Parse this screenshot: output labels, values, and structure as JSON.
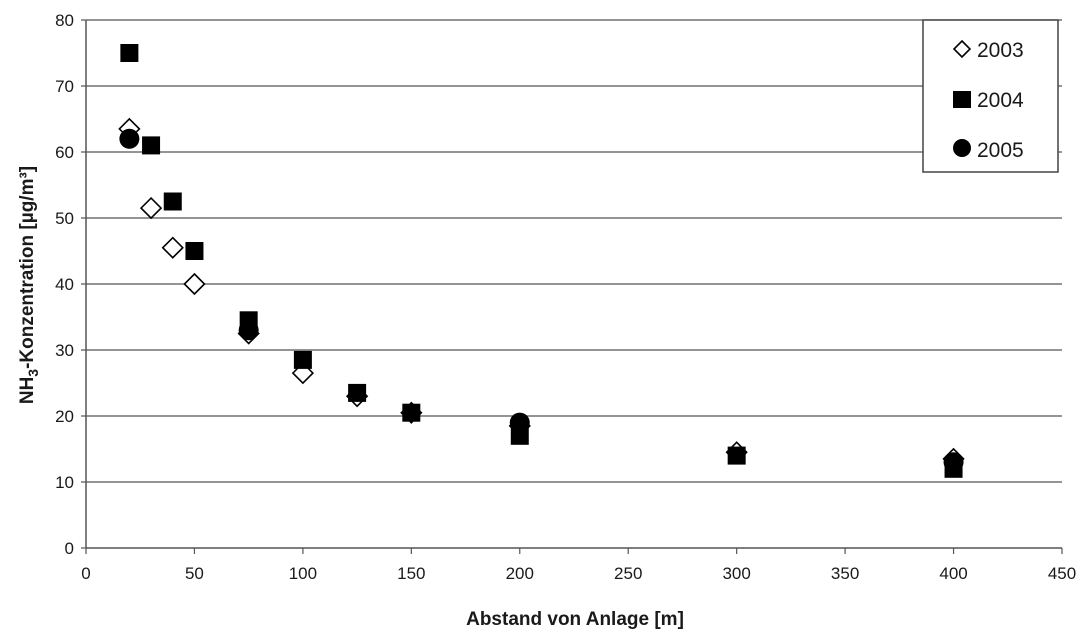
{
  "chart_data": {
    "type": "scatter",
    "title": "",
    "xlabel": "Abstand von Anlage [m]",
    "ylabel_prefix": "NH",
    "ylabel_sub": "3",
    "ylabel_suffix": "-Konzentration [µg/m³]",
    "xlim": [
      0,
      450
    ],
    "ylim": [
      0,
      80
    ],
    "xticks": [
      0,
      50,
      100,
      150,
      200,
      250,
      300,
      350,
      400,
      450
    ],
    "yticks": [
      0,
      10,
      20,
      30,
      40,
      50,
      60,
      70,
      80
    ],
    "grid": "horizontal",
    "legend_position": "top-right",
    "series": [
      {
        "name": "2003",
        "marker": "diamond-open",
        "color": "#000000",
        "points": [
          [
            20,
            63.5
          ],
          [
            30,
            51.5
          ],
          [
            40,
            45.5
          ],
          [
            50,
            40
          ],
          [
            75,
            32.5
          ],
          [
            100,
            26.5
          ],
          [
            125,
            23
          ],
          [
            150,
            20.5
          ],
          [
            200,
            18.5
          ],
          [
            300,
            14.5
          ],
          [
            400,
            13.5
          ]
        ]
      },
      {
        "name": "2004",
        "marker": "square-filled",
        "color": "#000000",
        "points": [
          [
            20,
            75
          ],
          [
            30,
            61
          ],
          [
            40,
            52.5
          ],
          [
            50,
            45
          ],
          [
            75,
            34.5
          ],
          [
            100,
            28.5
          ],
          [
            125,
            23.5
          ],
          [
            150,
            20.5
          ],
          [
            200,
            17
          ],
          [
            300,
            14
          ],
          [
            400,
            12
          ]
        ]
      },
      {
        "name": "2005",
        "marker": "circle-filled",
        "color": "#000000",
        "points": [
          [
            20,
            62
          ],
          [
            75,
            33
          ],
          [
            200,
            19
          ],
          [
            400,
            13
          ]
        ]
      }
    ]
  }
}
